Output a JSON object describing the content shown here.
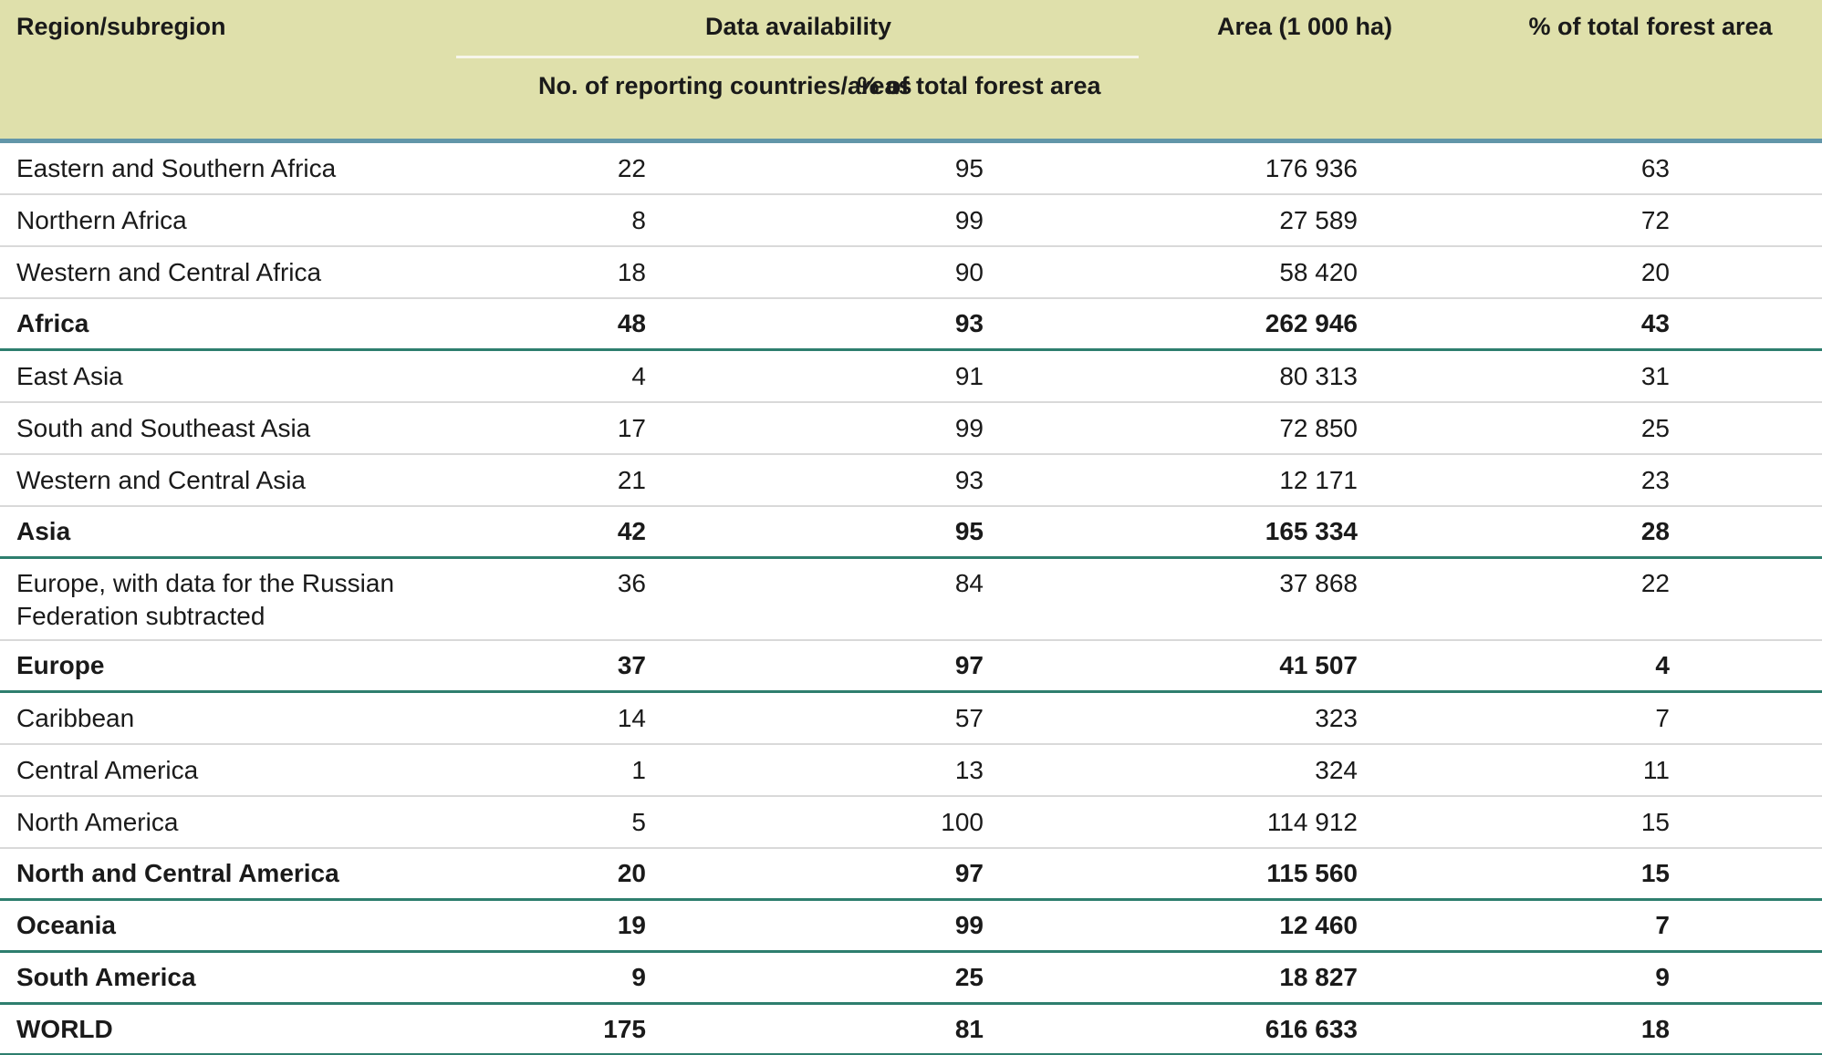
{
  "chart_data": {
    "type": "table",
    "columns": {
      "region": "Region/subregion",
      "data_availability_group": "Data availability",
      "reporting": "No. of reporting countries/areas",
      "availability_pct": "% of total forest area",
      "area": "Area (1 000 ha)",
      "total_pct": "% of total forest area"
    },
    "rows": [
      {
        "region": "Eastern and Southern Africa",
        "reporting": "22",
        "availability_pct": "95",
        "area": "176 936",
        "total_pct": "63",
        "is_total": false
      },
      {
        "region": "Northern Africa",
        "reporting": "8",
        "availability_pct": "99",
        "area": "27 589",
        "total_pct": "72",
        "is_total": false
      },
      {
        "region": "Western and Central Africa",
        "reporting": "18",
        "availability_pct": "90",
        "area": "58 420",
        "total_pct": "20",
        "is_total": false
      },
      {
        "region": "Africa",
        "reporting": "48",
        "availability_pct": "93",
        "area": "262 946",
        "total_pct": "43",
        "is_total": true
      },
      {
        "region": "East Asia",
        "reporting": "4",
        "availability_pct": "91",
        "area": "80 313",
        "total_pct": "31",
        "is_total": false
      },
      {
        "region": "South and Southeast Asia",
        "reporting": "17",
        "availability_pct": "99",
        "area": "72 850",
        "total_pct": "25",
        "is_total": false
      },
      {
        "region": "Western and Central Asia",
        "reporting": "21",
        "availability_pct": "93",
        "area": "12 171",
        "total_pct": "23",
        "is_total": false
      },
      {
        "region": "Asia",
        "reporting": "42",
        "availability_pct": "95",
        "area": "165 334",
        "total_pct": "28",
        "is_total": true
      },
      {
        "region": "Europe, with data for the Russian Federation subtracted",
        "reporting": "36",
        "availability_pct": "84",
        "area": "37 868",
        "total_pct": "22",
        "is_total": false
      },
      {
        "region": "Europe",
        "reporting": "37",
        "availability_pct": "97",
        "area": "41 507",
        "total_pct": "4",
        "is_total": true
      },
      {
        "region": "Caribbean",
        "reporting": "14",
        "availability_pct": "57",
        "area": "323",
        "total_pct": "7",
        "is_total": false
      },
      {
        "region": "Central America",
        "reporting": "1",
        "availability_pct": "13",
        "area": "324",
        "total_pct": "11",
        "is_total": false
      },
      {
        "region": "North America",
        "reporting": "5",
        "availability_pct": "100",
        "area": "114 912",
        "total_pct": "15",
        "is_total": false
      },
      {
        "region": "North and Central America",
        "reporting": "20",
        "availability_pct": "97",
        "area": "115 560",
        "total_pct": "15",
        "is_total": true
      },
      {
        "region": "Oceania",
        "reporting": "19",
        "availability_pct": "99",
        "area": "12 460",
        "total_pct": "7",
        "is_total": true
      },
      {
        "region": "South America",
        "reporting": "9",
        "availability_pct": "25",
        "area": "18 827",
        "total_pct": "9",
        "is_total": true
      },
      {
        "region": "WORLD",
        "reporting": "175",
        "availability_pct": "81",
        "area": "616 633",
        "total_pct": "18",
        "is_total": true
      }
    ]
  },
  "colors": {
    "header_background": "#dfe0ab",
    "header_bottom_rule": "#6296a9",
    "section_rule": "#2e7e6e",
    "row_rule": "#d9d9d9",
    "text": "#1a1a1a"
  }
}
